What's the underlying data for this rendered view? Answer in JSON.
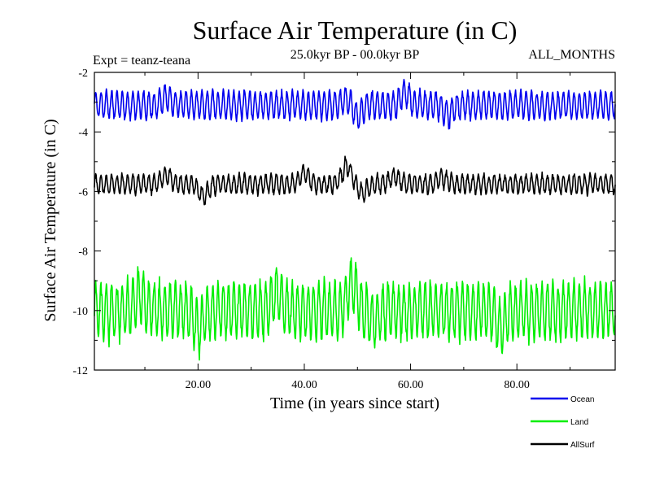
{
  "chart_data": {
    "type": "line",
    "title": "Surface Air Temperature (in C)",
    "subtitle_left": "Expt = teanz-teana",
    "subtitle_center": "25.0kyr BP - 00.0kyr BP",
    "subtitle_right": "ALL_MONTHS",
    "xlabel": "Time (in years since start)",
    "ylabel": "Surface Air Temperature (in C)",
    "xlim": [
      0.5,
      98.5
    ],
    "ylim": [
      -12,
      -2
    ],
    "x_ticks": [
      20,
      40,
      60,
      80
    ],
    "x_tick_labels": [
      "20.00",
      "40.00",
      "60.00",
      "80.00"
    ],
    "y_ticks": [
      -2,
      -4,
      -6,
      -8,
      -10,
      -12
    ],
    "y_tick_labels": [
      "-2",
      "-4",
      "-6",
      "-8",
      "-10",
      "-12"
    ],
    "grid": false,
    "legend_position": "bottom-right",
    "samples_per_year": 12,
    "series": [
      {
        "name": "Ocean",
        "color": "#0000ee",
        "mean": -3.1,
        "seasonal_amplitude": 0.45,
        "noise": 0.15,
        "features": [
          [
            14,
            0.25
          ],
          [
            48,
            0.2
          ],
          [
            50,
            -0.35
          ],
          [
            59,
            0.4
          ],
          [
            67,
            -0.3
          ]
        ]
      },
      {
        "name": "Land",
        "color": "#00ee00",
        "mean": -10.0,
        "seasonal_amplitude": 0.9,
        "noise": 0.35,
        "features": [
          [
            9,
            0.5
          ],
          [
            20,
            -0.6
          ],
          [
            35,
            0.6
          ],
          [
            49,
            0.9
          ],
          [
            53,
            -0.4
          ],
          [
            77,
            -0.6
          ]
        ]
      },
      {
        "name": "AllSurf",
        "color": "#000000",
        "mean": -5.75,
        "seasonal_amplitude": 0.3,
        "noise": 0.15,
        "features": [
          [
            14,
            0.3
          ],
          [
            21,
            -0.4
          ],
          [
            40,
            0.35
          ],
          [
            48,
            0.6
          ],
          [
            51,
            -0.3
          ],
          [
            57,
            0.25
          ],
          [
            66,
            0.2
          ]
        ]
      }
    ]
  }
}
